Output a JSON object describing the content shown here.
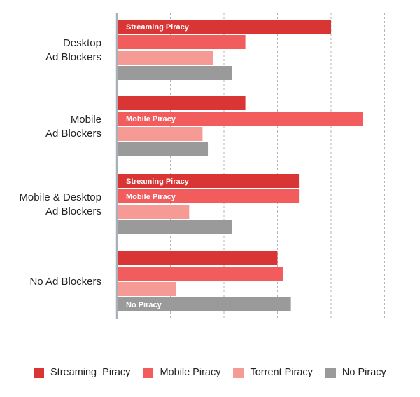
{
  "chart_data": {
    "type": "bar",
    "orientation": "horizontal",
    "categories": [
      [
        "Desktop",
        "Ad Blockers"
      ],
      [
        "Mobile",
        "Ad Blockers"
      ],
      [
        "Mobile & Desktop",
        "Ad Blockers"
      ],
      [
        "No Ad Blockers"
      ]
    ],
    "series": [
      {
        "name": "Streaming  Piracy",
        "color": "#d93535",
        "values": [
          4.0,
          2.4,
          3.4,
          3.0
        ]
      },
      {
        "name": "Mobile Piracy",
        "color": "#f25c5c",
        "values": [
          2.4,
          4.6,
          3.4,
          3.1
        ]
      },
      {
        "name": "Torrent Piracy",
        "color": "#f59a95",
        "values": [
          1.8,
          1.6,
          1.35,
          1.1
        ]
      },
      {
        "name": "No Piracy",
        "color": "#9a9a9a",
        "values": [
          2.15,
          1.7,
          2.15,
          3.25
        ]
      }
    ],
    "xlim": [
      0,
      5
    ],
    "gridlines": [
      1,
      2,
      3,
      4,
      5
    ],
    "grid": true,
    "legend_position": "bottom",
    "bar_labels": [
      {
        "category": 0,
        "series": 0,
        "text": "Streaming Piracy"
      },
      {
        "category": 1,
        "series": 1,
        "text": "Mobile Piracy"
      },
      {
        "category": 2,
        "series": 0,
        "text": "Streaming Piracy"
      },
      {
        "category": 2,
        "series": 1,
        "text": "Mobile Piracy"
      },
      {
        "category": 3,
        "series": 3,
        "text": "No Piracy"
      }
    ]
  }
}
